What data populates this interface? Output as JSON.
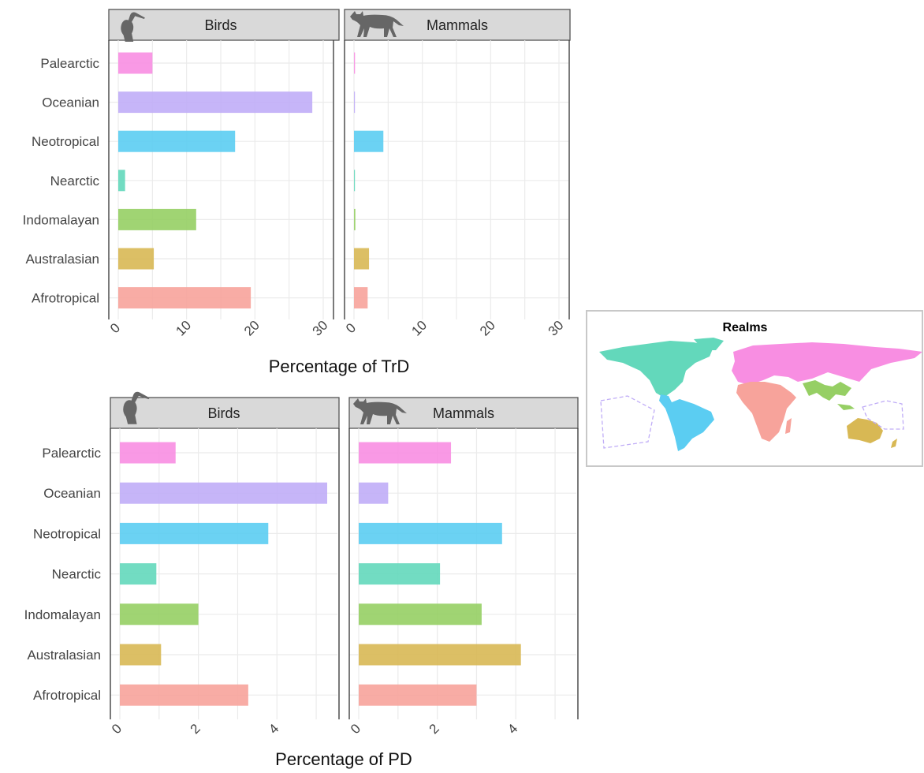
{
  "chart_data": [
    {
      "type": "bar",
      "orientation": "horizontal",
      "xlabel": "Percentage of TrD",
      "xlim": [
        0,
        30
      ],
      "xticks": [
        "0",
        "10",
        "20",
        "30"
      ],
      "grid": true,
      "categories": [
        "Palearctic",
        "Oceanian",
        "Neotropical",
        "Nearctic",
        "Indomalayan",
        "Australasian",
        "Afrotropical"
      ],
      "panels": [
        {
          "name": "Birds",
          "icon": "pelican-icon",
          "values": [
            5.0,
            28.4,
            17.1,
            1.0,
            11.4,
            5.2,
            19.4
          ]
        },
        {
          "name": "Mammals",
          "icon": "wolf-icon",
          "values": [
            0.15,
            0.0,
            4.3,
            0.1,
            0.2,
            2.2,
            2.0
          ]
        }
      ]
    },
    {
      "type": "bar",
      "orientation": "horizontal",
      "xlabel": "Percentage of PD",
      "xlim": [
        0,
        5.3
      ],
      "xticks": [
        "0",
        "2",
        "4"
      ],
      "grid": true,
      "categories": [
        "Palearctic",
        "Oceanian",
        "Neotropical",
        "Nearctic",
        "Indomalayan",
        "Australasian",
        "Afrotropical"
      ],
      "panels": [
        {
          "name": "Birds",
          "icon": "pelican-icon",
          "values": [
            1.42,
            5.28,
            3.78,
            0.93,
            2.0,
            1.05,
            3.27
          ]
        },
        {
          "name": "Mammals",
          "icon": "wolf-icon",
          "values": [
            2.35,
            0.75,
            3.65,
            2.07,
            3.13,
            4.13,
            3.0
          ]
        }
      ]
    }
  ],
  "colors": {
    "Palearctic": "#f88ee2",
    "Oceanian": "#c0adf7",
    "Neotropical": "#5bcdf2",
    "Nearctic": "#63d8bb",
    "Indomalayan": "#96cf64",
    "Australasian": "#d8b854",
    "Afrotropical": "#f7a39b",
    "strip": "#d9d9d9",
    "grid": "#ebebeb",
    "icon": "#666666"
  },
  "map": {
    "title": "Realms"
  }
}
